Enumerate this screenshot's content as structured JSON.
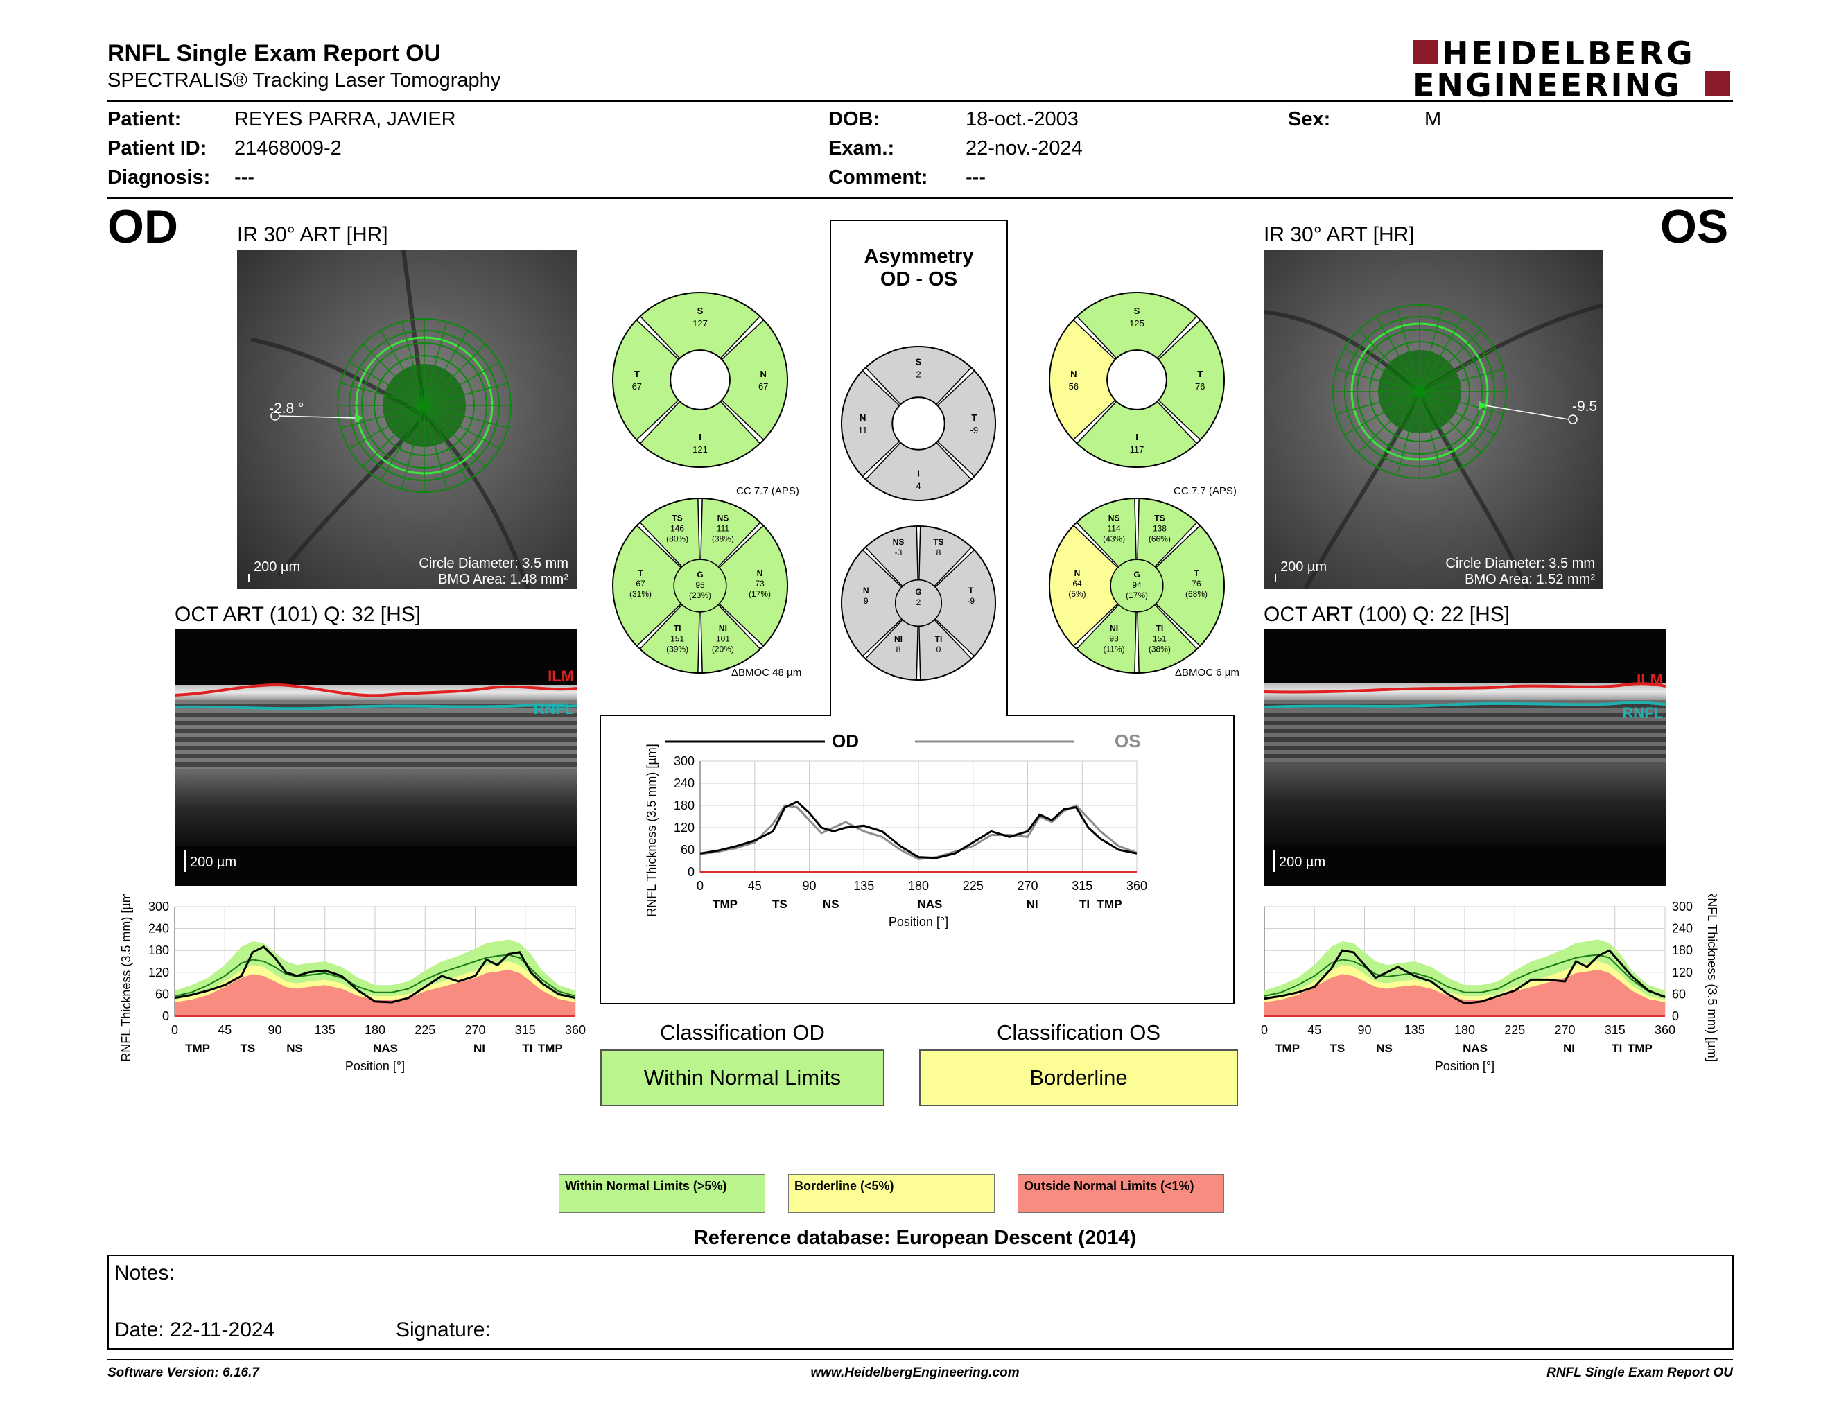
{
  "header": {
    "title": "RNFL Single Exam Report OU",
    "subtitle": "SPECTRALIS® Tracking Laser Tomography",
    "brand_line1": "HEIDELBERG",
    "brand_line2": "ENGINEERING",
    "brand_color": "#8b1a2b"
  },
  "patient": {
    "patient_label": "Patient:",
    "patient_value": "REYES PARRA, JAVIER",
    "id_label": "Patient ID:",
    "id_value": "21468009-2",
    "diag_label": "Diagnosis:",
    "diag_value": "---",
    "dob_label": "DOB:",
    "dob_value": "18-oct.-2003",
    "exam_label": "Exam.:",
    "exam_value": "22-nov.-2024",
    "comment_label": "Comment:",
    "comment_value": "---",
    "sex_label": "Sex:",
    "sex_value": "M"
  },
  "od": {
    "eye": "OD",
    "ir_title": "IR 30° ART [HR]",
    "angle": "-2.8 °",
    "scale": "200 µm",
    "circle_diameter": "Circle Diameter: 3.5 mm",
    "bmo_area": "BMO Area: 1.48 mm²",
    "oct_title": "OCT ART (101) Q: 32 [HS]",
    "oct_scale": "200 µm",
    "ilm": "ILM",
    "rnfl": "RNFL",
    "sectors4": {
      "S": "127",
      "N": "67",
      "I": "121",
      "T": "67"
    },
    "cc": "CC 7.7 (APS)",
    "bmoc": "BMOC 48 µm",
    "sectors6": {
      "TS": [
        "TS",
        "146",
        "(80%)"
      ],
      "NS": [
        "NS",
        "111",
        "(38%)"
      ],
      "T": [
        "T",
        "67",
        "(31%)"
      ],
      "G": [
        "G",
        "95",
        "(23%)"
      ],
      "N": [
        "N",
        "73",
        "(17%)"
      ],
      "TI": [
        "TI",
        "151",
        "(39%)"
      ],
      "NI": [
        "NI",
        "101",
        "(20%)"
      ]
    },
    "classification_label": "Classification OD",
    "classification_value": "Within Normal Limits"
  },
  "os": {
    "eye": "OS",
    "ir_title": "IR 30° ART [HR]",
    "angle": "-9.5",
    "scale": "200 µm",
    "circle_diameter": "Circle Diameter: 3.5 mm",
    "bmo_area": "BMO Area: 1.52 mm²",
    "oct_title": "OCT ART (100) Q: 22 [HS]",
    "oct_scale": "200 µm",
    "ilm": "ILM",
    "rnfl": "RNFL",
    "sectors4": {
      "S": "125",
      "N": "56",
      "I": "117",
      "T": "76"
    },
    "cc": "CC 7.7 (APS)",
    "bmoc": "BMOC 6 µm",
    "sectors6": {
      "NS": [
        "NS",
        "114",
        "(43%)"
      ],
      "TS": [
        "TS",
        "138",
        "(66%)"
      ],
      "N": [
        "N",
        "64",
        "(5%)"
      ],
      "G": [
        "G",
        "94",
        "(17%)"
      ],
      "T": [
        "T",
        "76",
        "(68%)"
      ],
      "NI": [
        "NI",
        "93",
        "(11%)"
      ],
      "TI": [
        "TI",
        "151",
        "(38%)"
      ]
    },
    "classification_label": "Classification OS",
    "classification_value": "Borderline"
  },
  "asymmetry": {
    "title1": "Asymmetry",
    "title2": "OD - OS",
    "sectors4": {
      "S": "2",
      "N": "11",
      "I": "4",
      "T": "-9"
    },
    "sectors6": {
      "NS": "-3",
      "TS": "8",
      "N": "9",
      "G": "2",
      "T": "-9",
      "NI": "8",
      "TI": "0"
    }
  },
  "colors": {
    "normal": "#b9f58c",
    "borderline": "#fdfd96",
    "outside": "#f98c80",
    "asym_gray": "#d2d2d2",
    "od_line": "#000000",
    "os_line": "#8c8c8c"
  },
  "chart_data": [
    {
      "type": "line",
      "id": "compare",
      "legend": [
        "OD",
        "OS"
      ],
      "xlabel": "Position [°]",
      "ylabel": "RNFL Thickness (3.5 mm) [µm]",
      "xticks": [
        "0",
        "45",
        "90",
        "135",
        "180",
        "225",
        "270",
        "315",
        "360"
      ],
      "yticks": [
        "0",
        "60",
        "120",
        "180",
        "240",
        "300"
      ],
      "sector_labels": [
        "TMP",
        "TS",
        "NS",
        "NAS",
        "NI",
        "TI",
        "TMP"
      ],
      "xlim": [
        0,
        360
      ],
      "ylim": [
        0,
        300
      ],
      "x": [
        0,
        15,
        30,
        45,
        60,
        70,
        80,
        90,
        100,
        110,
        120,
        135,
        150,
        165,
        180,
        195,
        210,
        225,
        240,
        255,
        270,
        280,
        290,
        300,
        310,
        320,
        330,
        345,
        360
      ],
      "series": [
        {
          "name": "OD",
          "values": [
            50,
            58,
            70,
            85,
            110,
            175,
            190,
            160,
            120,
            110,
            120,
            125,
            110,
            70,
            40,
            38,
            50,
            80,
            110,
            95,
            110,
            155,
            140,
            170,
            175,
            120,
            90,
            60,
            50
          ]
        },
        {
          "name": "OS",
          "values": [
            48,
            55,
            65,
            80,
            130,
            180,
            175,
            140,
            105,
            120,
            135,
            110,
            95,
            60,
            35,
            40,
            55,
            70,
            100,
            100,
            95,
            150,
            135,
            165,
            180,
            145,
            110,
            70,
            52
          ]
        }
      ]
    },
    {
      "type": "area",
      "id": "od_thickness",
      "xlabel": "Position [°]",
      "ylabel": "RNFL Thickness (3.5 mm) [µm]",
      "xticks": [
        "0",
        "45",
        "90",
        "135",
        "180",
        "225",
        "270",
        "315",
        "360"
      ],
      "yticks": [
        "0",
        "60",
        "120",
        "180",
        "240",
        "300"
      ],
      "sector_labels": [
        "TMP",
        "TS",
        "NS",
        "NAS",
        "NI",
        "TI",
        "TMP"
      ],
      "xlim": [
        0,
        360
      ],
      "ylim": [
        0,
        300
      ],
      "x": [
        0,
        15,
        30,
        45,
        60,
        70,
        80,
        90,
        100,
        110,
        120,
        135,
        150,
        165,
        180,
        195,
        210,
        225,
        240,
        255,
        270,
        280,
        290,
        300,
        310,
        320,
        330,
        345,
        360
      ],
      "series": [
        {
          "name": "normal_upper",
          "values": [
            70,
            85,
            105,
            140,
            190,
            205,
            200,
            175,
            150,
            140,
            145,
            150,
            135,
            105,
            85,
            85,
            95,
            125,
            150,
            165,
            185,
            200,
            205,
            210,
            200,
            170,
            125,
            85,
            70
          ]
        },
        {
          "name": "borderline_upper",
          "values": [
            45,
            55,
            70,
            95,
            125,
            140,
            135,
            115,
            95,
            90,
            95,
            100,
            90,
            65,
            55,
            55,
            60,
            80,
            95,
            110,
            125,
            140,
            145,
            150,
            140,
            115,
            85,
            55,
            45
          ]
        },
        {
          "name": "outside_upper",
          "values": [
            38,
            45,
            58,
            80,
            105,
            115,
            110,
            95,
            80,
            75,
            80,
            85,
            75,
            55,
            45,
            45,
            50,
            68,
            80,
            92,
            105,
            118,
            122,
            128,
            118,
            95,
            70,
            47,
            38
          ]
        },
        {
          "name": "mean",
          "values": [
            55,
            65,
            85,
            110,
            145,
            155,
            150,
            135,
            115,
            108,
            112,
            118,
            105,
            80,
            65,
            65,
            75,
            100,
            120,
            135,
            150,
            160,
            165,
            168,
            160,
            130,
            100,
            68,
            55
          ]
        },
        {
          "name": "OD",
          "values": [
            50,
            58,
            70,
            85,
            110,
            175,
            190,
            160,
            120,
            110,
            120,
            125,
            110,
            70,
            40,
            38,
            50,
            80,
            110,
            95,
            110,
            155,
            140,
            170,
            175,
            120,
            90,
            60,
            50
          ]
        }
      ]
    },
    {
      "type": "area",
      "id": "os_thickness",
      "xlabel": "Position [°]",
      "ylabel": "RNFL Thickness (3.5 mm) [µm]",
      "xticks": [
        "0",
        "45",
        "90",
        "135",
        "180",
        "225",
        "270",
        "315",
        "360"
      ],
      "yticks": [
        "0",
        "60",
        "120",
        "180",
        "240",
        "300"
      ],
      "sector_labels": [
        "TMP",
        "TS",
        "NS",
        "NAS",
        "NI",
        "TI",
        "TMP"
      ],
      "xlim": [
        0,
        360
      ],
      "ylim": [
        0,
        300
      ],
      "x": [
        0,
        15,
        30,
        45,
        60,
        70,
        80,
        90,
        100,
        110,
        120,
        135,
        150,
        165,
        180,
        195,
        210,
        225,
        240,
        255,
        270,
        280,
        290,
        300,
        310,
        320,
        330,
        345,
        360
      ],
      "series": [
        {
          "name": "normal_upper",
          "values": [
            70,
            85,
            105,
            140,
            190,
            205,
            200,
            175,
            150,
            140,
            145,
            150,
            135,
            105,
            85,
            85,
            95,
            125,
            150,
            165,
            185,
            200,
            205,
            210,
            200,
            170,
            125,
            85,
            70
          ]
        },
        {
          "name": "borderline_upper",
          "values": [
            45,
            55,
            70,
            95,
            125,
            140,
            135,
            115,
            95,
            90,
            95,
            100,
            90,
            65,
            55,
            55,
            60,
            80,
            95,
            110,
            125,
            140,
            145,
            150,
            140,
            115,
            85,
            55,
            45
          ]
        },
        {
          "name": "outside_upper",
          "values": [
            38,
            45,
            58,
            80,
            105,
            115,
            110,
            95,
            80,
            75,
            80,
            85,
            75,
            55,
            45,
            45,
            50,
            68,
            80,
            92,
            105,
            118,
            122,
            128,
            118,
            95,
            70,
            47,
            38
          ]
        },
        {
          "name": "mean",
          "values": [
            55,
            65,
            85,
            110,
            145,
            155,
            150,
            135,
            115,
            108,
            112,
            118,
            105,
            80,
            65,
            65,
            75,
            100,
            120,
            135,
            150,
            160,
            165,
            168,
            160,
            130,
            100,
            68,
            55
          ]
        },
        {
          "name": "OS",
          "values": [
            48,
            55,
            65,
            80,
            130,
            180,
            175,
            140,
            105,
            120,
            135,
            110,
            95,
            60,
            35,
            40,
            55,
            70,
            100,
            100,
            95,
            150,
            135,
            165,
            180,
            145,
            110,
            70,
            52
          ]
        }
      ]
    }
  ],
  "legend": {
    "normal": "Within Normal Limits (>5%)",
    "borderline": "Borderline (<5%)",
    "outside": "Outside Normal Limits (<1%)"
  },
  "reference_db": "Reference database: European Descent (2014)",
  "notes": {
    "notes_label": "Notes:",
    "date_label": "Date: 22-11-2024",
    "signature_label": "Signature:"
  },
  "footer": {
    "version": "Software Version: 6.16.7",
    "url": "www.HeidelbergEngineering.com",
    "report": "RNFL Single Exam Report OU"
  }
}
